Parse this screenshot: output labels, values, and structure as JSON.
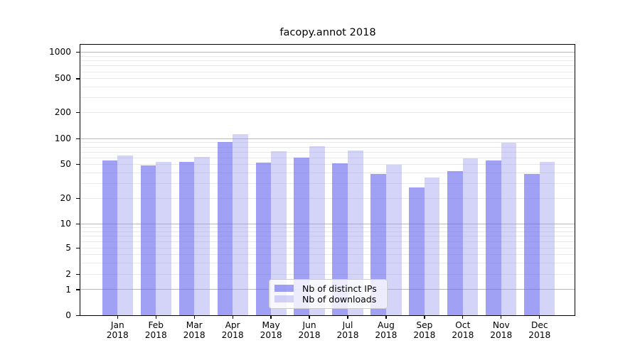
{
  "chart_data": {
    "type": "bar",
    "title": "facopy.annot 2018",
    "categories": [
      "Jan",
      "Feb",
      "Mar",
      "Apr",
      "May",
      "Jun",
      "Jul",
      "Aug",
      "Sep",
      "Oct",
      "Nov",
      "Dec"
    ],
    "category_year": "2018",
    "series": [
      {
        "name": "Nb of distinct IPs",
        "color": "#6666ee",
        "opacity": 0.62,
        "values": [
          56,
          49,
          53,
          92,
          52,
          60,
          51,
          39,
          27,
          42,
          56,
          39
        ]
      },
      {
        "name": "Nb of downloads",
        "color": "#9999ee",
        "opacity": 0.42,
        "values": [
          63,
          53,
          61,
          113,
          72,
          82,
          73,
          50,
          35,
          59,
          90,
          53
        ]
      }
    ],
    "yscale": "symlog",
    "y_ticks": [
      0,
      1,
      2,
      5,
      10,
      20,
      50,
      100,
      200,
      500,
      1000
    ],
    "ylim": [
      0,
      1300
    ],
    "xlabel": "",
    "ylabel": "",
    "grid": true,
    "legend_position": "lower center",
    "background_color": "#ffffff",
    "major_gridline_values": [
      1,
      10,
      100,
      1000
    ],
    "minor_gridline_values": [
      2,
      3,
      4,
      5,
      6,
      7,
      8,
      9,
      20,
      30,
      40,
      50,
      60,
      70,
      80,
      90,
      200,
      300,
      400,
      500,
      600,
      700,
      800,
      900
    ]
  }
}
